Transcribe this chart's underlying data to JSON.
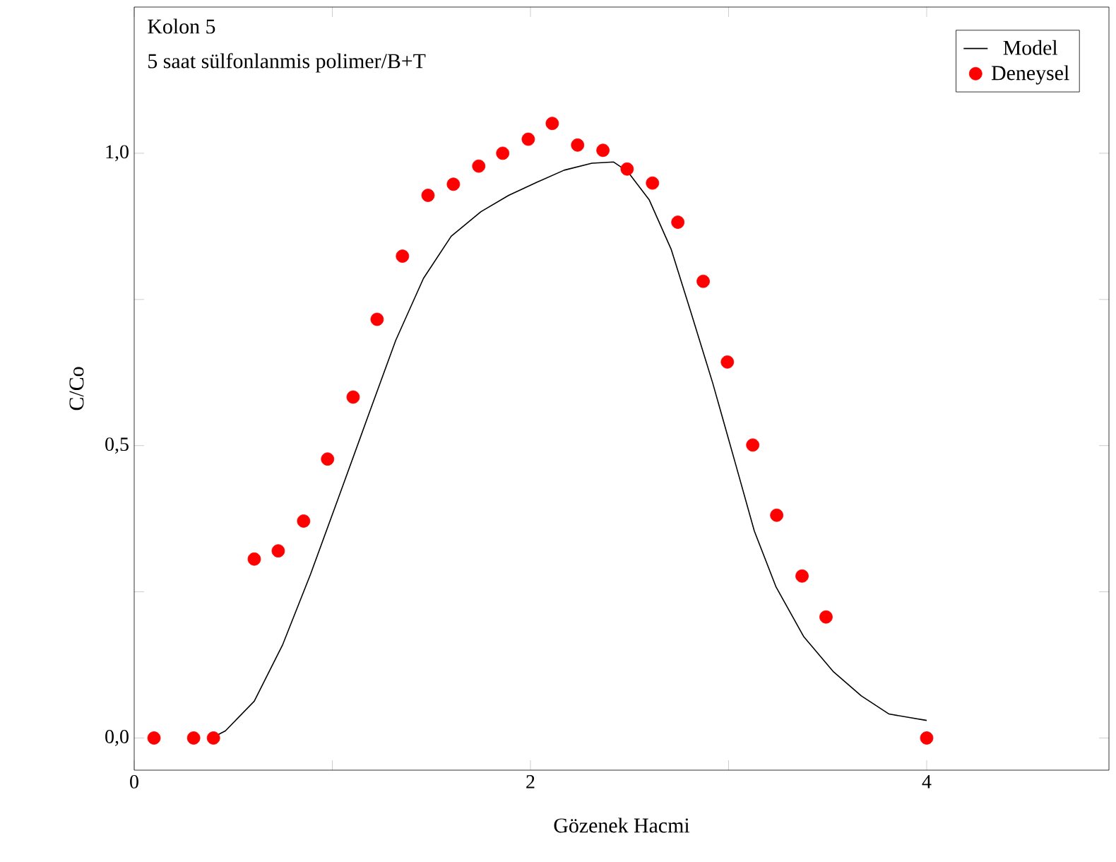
{
  "chart_data": {
    "type": "scatter",
    "xlabel": "Gözenek Hacmi",
    "ylabel": "C/Co",
    "annotations": [
      "Kolon 5",
      "5 saat sülfonlanmis polimer/B+T"
    ],
    "xlim": [
      0,
      4.92
    ],
    "ylim": [
      -0.055,
      1.25
    ],
    "xticks": [
      0,
      {
        "value": 1,
        "label": null
      },
      2,
      {
        "value": 3,
        "label": null
      },
      4
    ],
    "yticks": [
      {
        "value": 0,
        "label": "0,0"
      },
      {
        "value": 0.25,
        "label": null
      },
      {
        "value": 0.5,
        "label": "0,5"
      },
      {
        "value": 0.75,
        "label": null
      },
      {
        "value": 1,
        "label": "1,0"
      }
    ],
    "grid": false,
    "legend": "top right",
    "series": [
      {
        "name": "Model",
        "type": "line",
        "color": "#000000",
        "marker": "none",
        "line_style": "solid",
        "x": [
          0.39,
          0.46,
          0.606,
          0.75,
          0.89,
          1.03,
          1.18,
          1.32,
          1.46,
          1.6,
          1.75,
          1.89,
          2.03,
          2.17,
          2.31,
          2.42,
          2.49,
          2.6,
          2.71,
          2.81,
          2.92,
          3.03,
          3.13,
          3.24,
          3.38,
          3.53,
          3.67,
          3.81,
          4.0
        ],
        "values": [
          0,
          0.012,
          0.063,
          0.16,
          0.28,
          0.41,
          0.55,
          0.68,
          0.786,
          0.858,
          0.9,
          0.928,
          0.95,
          0.971,
          0.983,
          0.985,
          0.969,
          0.92,
          0.836,
          0.728,
          0.607,
          0.475,
          0.354,
          0.258,
          0.173,
          0.113,
          0.072,
          0.041,
          0.03
        ]
      },
      {
        "name": "Deneysel",
        "color": "#ff0000",
        "marker": "circle",
        "x": [
          0.1,
          0.3,
          0.4,
          0.606,
          0.727,
          0.855,
          0.976,
          1.105,
          1.226,
          1.354,
          1.483,
          1.611,
          1.739,
          1.86,
          1.989,
          2.11,
          2.238,
          2.366,
          2.488,
          2.616,
          2.744,
          2.872,
          2.994,
          3.122,
          3.243,
          3.371,
          3.492,
          4.0
        ],
        "values": [
          0,
          0,
          0,
          0.306,
          0.32,
          0.371,
          0.477,
          0.583,
          0.716,
          0.824,
          0.928,
          0.947,
          0.978,
          1.0,
          1.024,
          1.051,
          1.014,
          1.005,
          0.973,
          0.949,
          0.882,
          0.781,
          0.643,
          0.501,
          0.381,
          0.277,
          0.207,
          0
        ]
      }
    ]
  }
}
